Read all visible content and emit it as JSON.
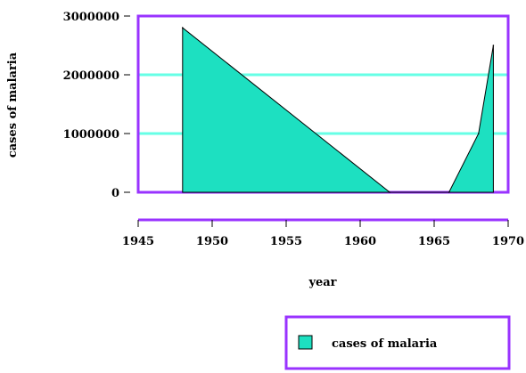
{
  "chart_data": {
    "type": "area",
    "title": "",
    "xlabel": "year",
    "ylabel": "cases of malaria",
    "xlim": [
      1945,
      1970
    ],
    "ylim": [
      0,
      3000000
    ],
    "x_ticks": [
      "1945",
      "1950",
      "1955",
      "1960",
      "1965",
      "1970"
    ],
    "y_ticks": [
      "0",
      "1000000",
      "2000000",
      "3000000"
    ],
    "grid": "horizontal lines at 1000000 and 2000000",
    "legend_position": "bottom-right",
    "series": [
      {
        "name": "cases of malaria",
        "x": [
          1948,
          1962,
          1966,
          1968,
          1969
        ],
        "values": [
          2800000,
          0,
          0,
          1000000,
          2500000
        ]
      }
    ]
  },
  "colors": {
    "fill": "#1de0c1",
    "frame": "#9933ff",
    "grid": "#66ffe6",
    "line": "#000000"
  }
}
